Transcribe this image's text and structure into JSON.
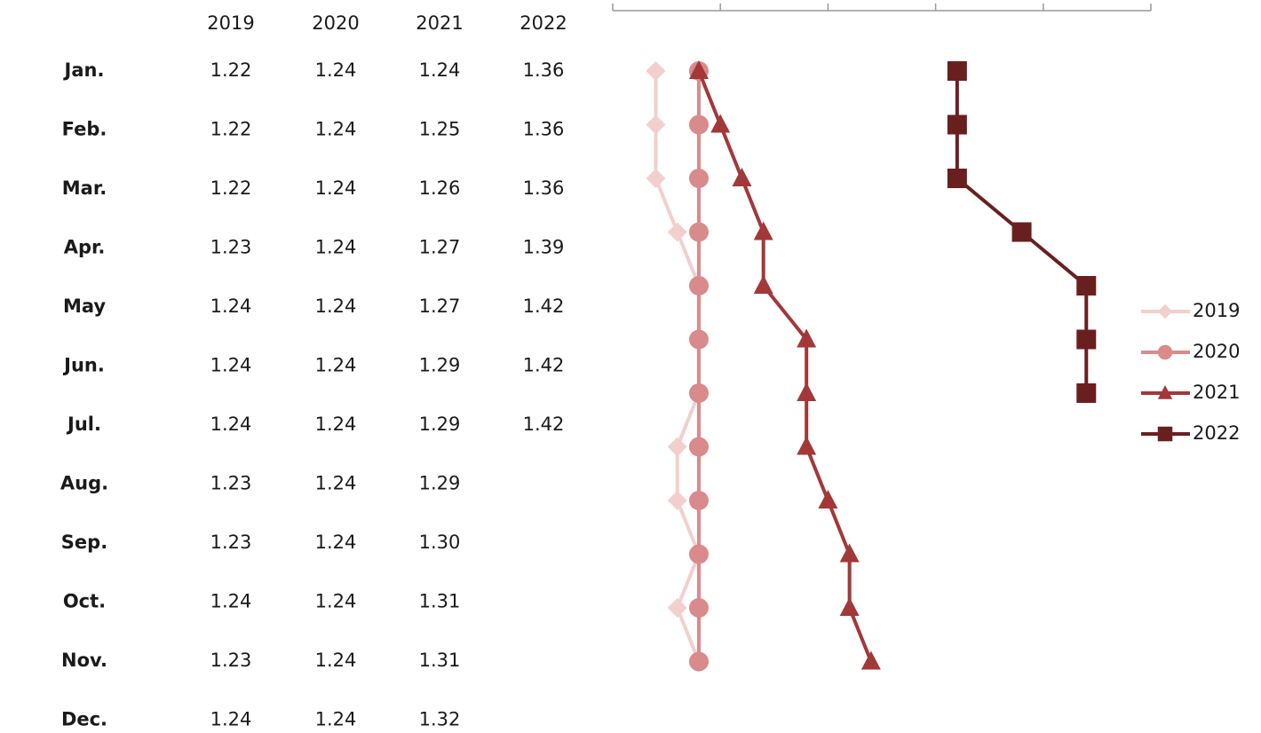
{
  "chart_data": {
    "type": "line",
    "orientation": "vertical",
    "categories": [
      "Jan.",
      "Feb.",
      "Mar.",
      "Apr.",
      "May",
      "Jun.",
      "Jul.",
      "Aug.",
      "Sep.",
      "Oct.",
      "Nov.",
      "Dec."
    ],
    "series": [
      {
        "name": "2019",
        "color": "#f2cfcd",
        "marker": "diamond",
        "values": [
          1.22,
          1.22,
          1.22,
          1.23,
          1.24,
          1.24,
          1.24,
          1.23,
          1.23,
          1.24,
          1.23,
          1.24
        ],
        "value_labels": [
          "1.22",
          "1.22",
          "1.22",
          "1.23",
          "1.24",
          "1.24",
          "1.24",
          "1.23",
          "1.23",
          "1.24",
          "1.23",
          "1.24"
        ]
      },
      {
        "name": "2020",
        "color": "#d98a8b",
        "marker": "circle",
        "values": [
          1.24,
          1.24,
          1.24,
          1.24,
          1.24,
          1.24,
          1.24,
          1.24,
          1.24,
          1.24,
          1.24,
          1.24
        ],
        "value_labels": [
          "1.24",
          "1.24",
          "1.24",
          "1.24",
          "1.24",
          "1.24",
          "1.24",
          "1.24",
          "1.24",
          "1.24",
          "1.24",
          "1.24"
        ]
      },
      {
        "name": "2021",
        "color": "#a23838",
        "marker": "triangle",
        "values": [
          1.24,
          1.25,
          1.26,
          1.27,
          1.27,
          1.29,
          1.29,
          1.29,
          1.3,
          1.31,
          1.31,
          1.32
        ],
        "value_labels": [
          "1.24",
          "1.25",
          "1.26",
          "1.27",
          "1.27",
          "1.29",
          "1.29",
          "1.29",
          "1.30",
          "1.31",
          "1.31",
          "1.32"
        ]
      },
      {
        "name": "2022",
        "color": "#6a1f1f",
        "marker": "square",
        "values": [
          1.36,
          1.36,
          1.36,
          1.39,
          1.42,
          1.42,
          1.42,
          null,
          null,
          null,
          null,
          null
        ],
        "value_labels": [
          "1.36",
          "1.36",
          "1.36",
          "1.39",
          "1.42",
          "1.42",
          "1.42",
          null,
          null,
          null,
          null,
          null
        ]
      }
    ],
    "xlim": [
      1.2,
      1.45
    ],
    "xticks": [
      1.2,
      1.25,
      1.3,
      1.35,
      1.4,
      1.45
    ]
  }
}
